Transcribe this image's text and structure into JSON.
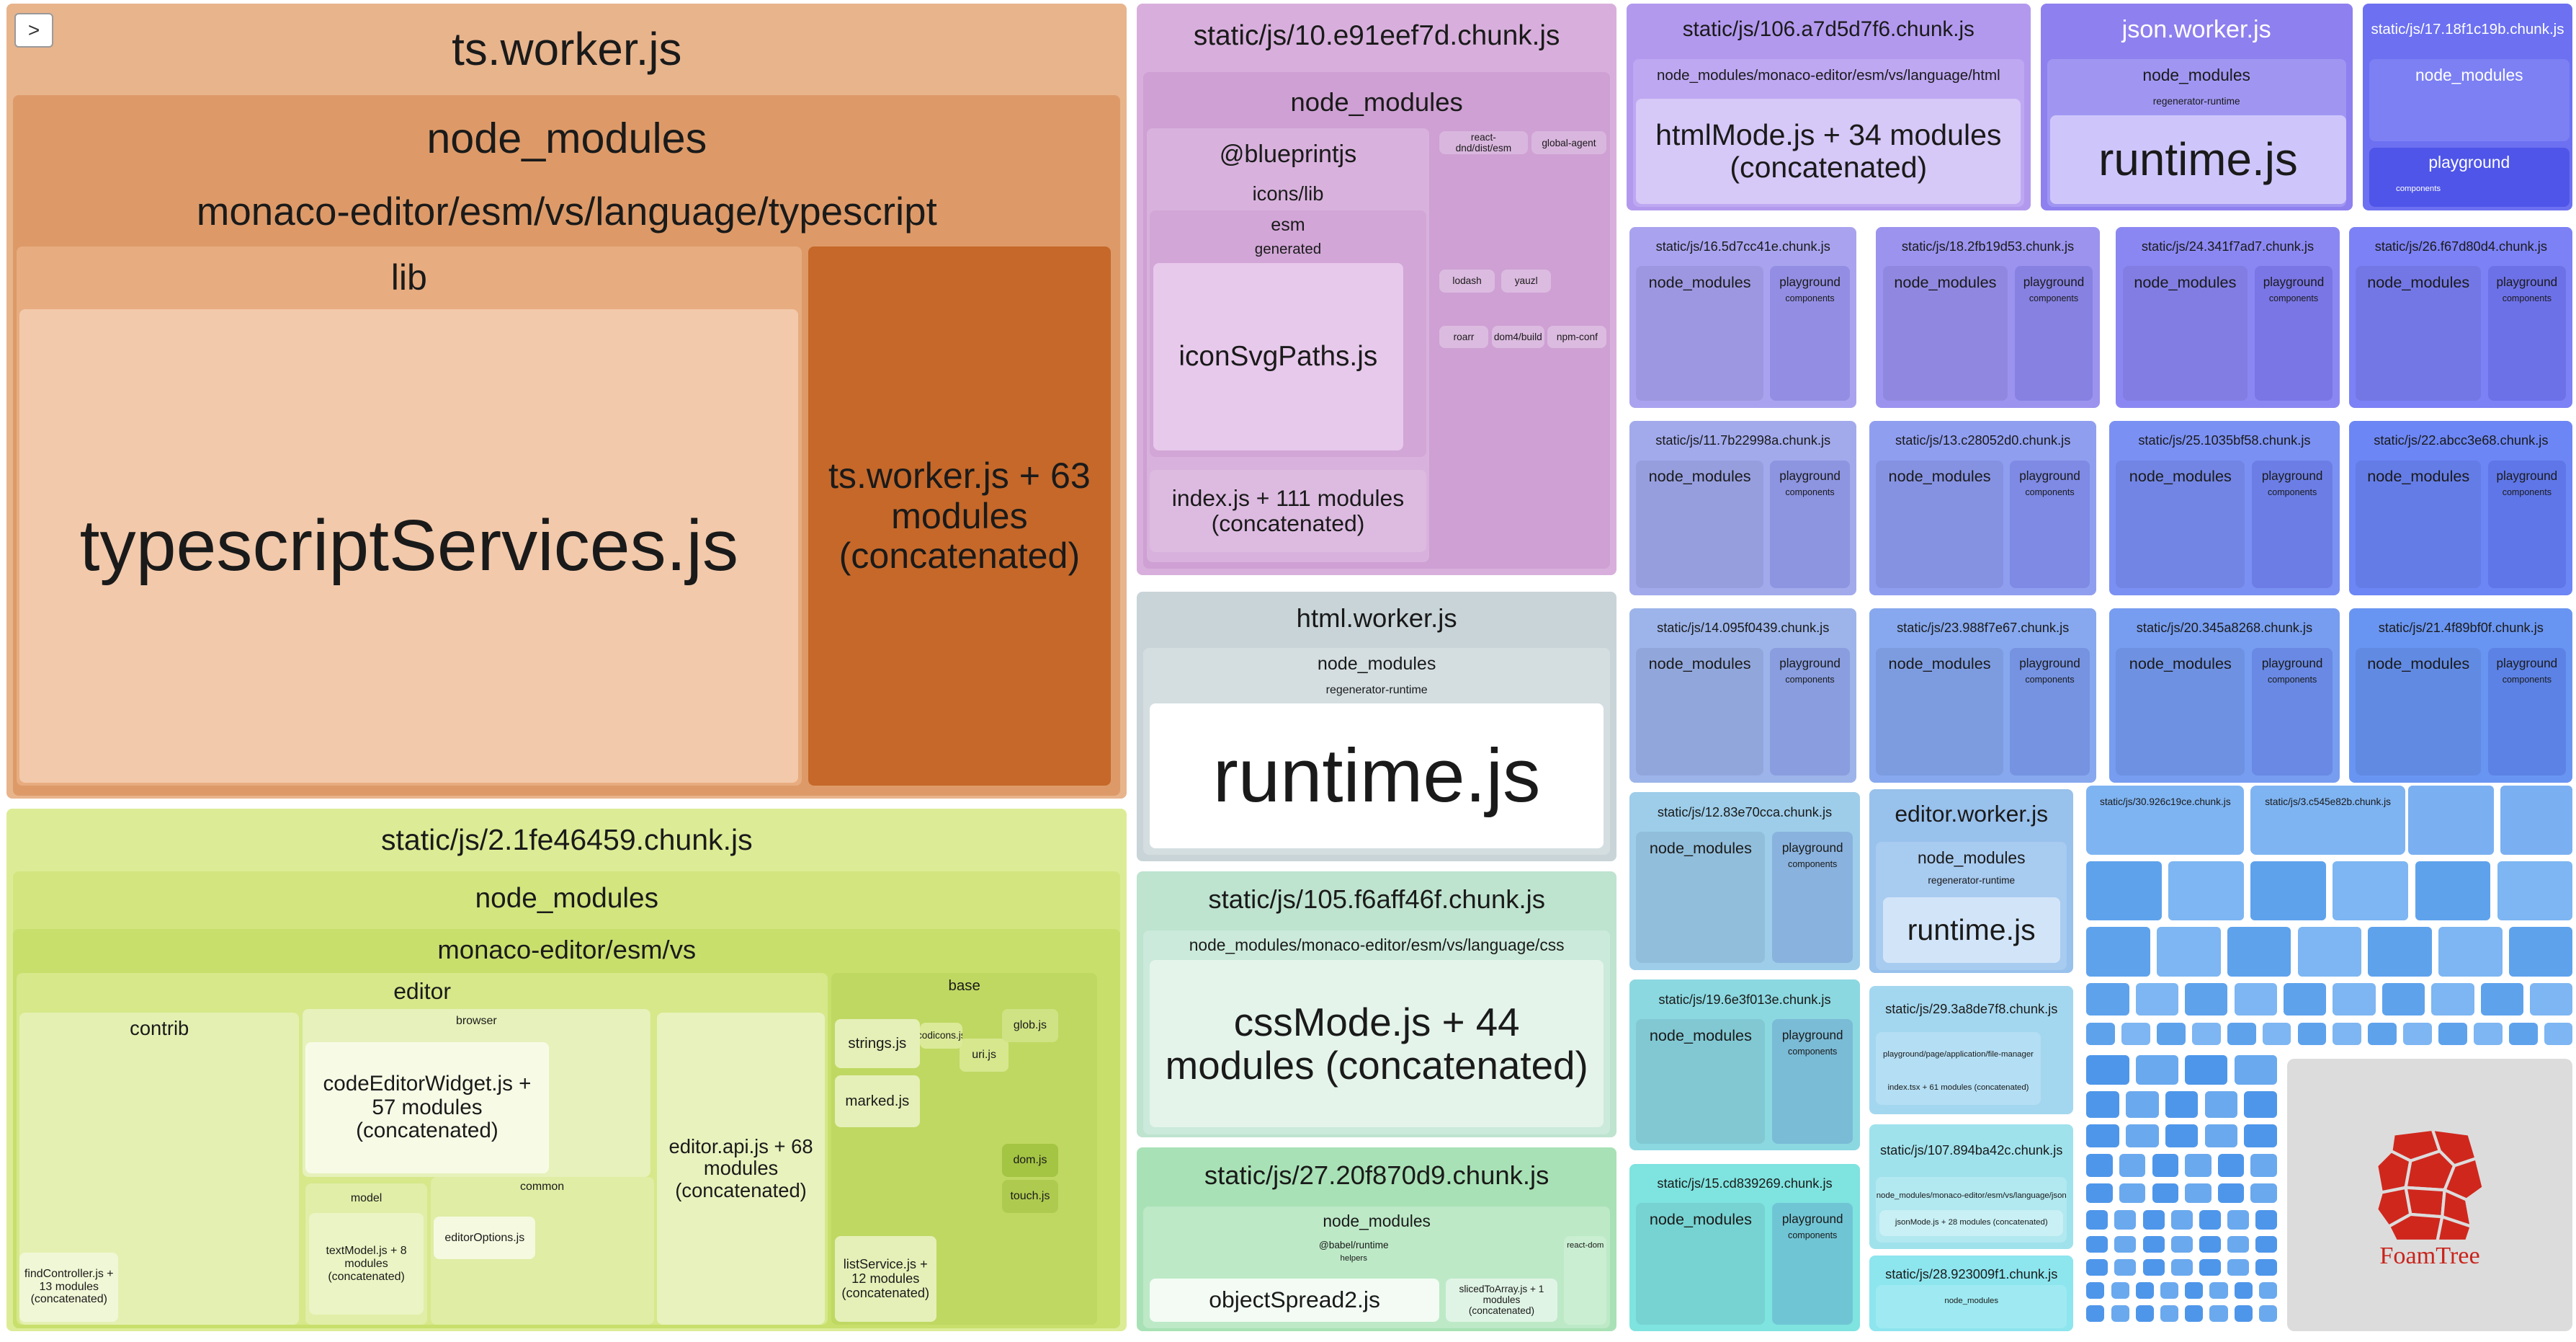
{
  "toggle": ">",
  "logo": "FoamTree",
  "tree": [
    {
      "label": "ts.worker.js",
      "children": [
        {
          "label": "node_modules",
          "children": [
            {
              "label": "monaco-editor/esm/vs/language/typescript",
              "children": [
                {
                  "label": "lib",
                  "children": [
                    {
                      "label": "typescriptServices.js"
                    }
                  ]
                },
                {
                  "label": "ts.worker.js + 63 modules (concatenated)"
                }
              ]
            }
          ]
        }
      ]
    },
    {
      "label": "static/js/2.1fe46459.chunk.js",
      "children": [
        {
          "label": "node_modules",
          "children": [
            {
              "label": "monaco-editor/esm/vs",
              "children": [
                {
                  "label": "editor",
                  "children": [
                    {
                      "label": "contrib",
                      "children": [
                        {
                          "label": "findController.js + 13 modules (concatenated)"
                        }
                      ]
                    },
                    {
                      "label": "browser",
                      "children": [
                        {
                          "label": "codeEditorWidget.js + 57 modules (concatenated)"
                        }
                      ]
                    },
                    {
                      "label": "editor.api.js + 68 modules (concatenated)"
                    },
                    {
                      "label": "model",
                      "children": [
                        {
                          "label": "textModel.js + 8 modules (concatenated)"
                        }
                      ]
                    },
                    {
                      "label": "common",
                      "children": [
                        {
                          "label": "editorOptions.js"
                        }
                      ]
                    }
                  ]
                },
                {
                  "label": "base",
                  "children": [
                    {
                      "label": "strings.js"
                    },
                    {
                      "label": "marked.js"
                    },
                    {
                      "label": "listService.js + 12 modules (concatenated)"
                    },
                    {
                      "label": "dom.js"
                    },
                    {
                      "label": "touch.js"
                    },
                    {
                      "label": "uri.js"
                    },
                    {
                      "label": "codicons.js"
                    },
                    {
                      "label": "glob.js"
                    }
                  ]
                }
              ]
            }
          ]
        }
      ]
    },
    {
      "label": "static/js/10.e91eef7d.chunk.js",
      "children": [
        {
          "label": "node_modules",
          "children": [
            {
              "label": "@blueprintjs",
              "children": [
                {
                  "label": "icons/lib",
                  "children": [
                    {
                      "label": "esm",
                      "children": [
                        {
                          "label": "generated",
                          "children": [
                            {
                              "label": "iconSvgPaths.js"
                            }
                          ]
                        }
                      ]
                    },
                    {
                      "label": "index.js + 111 modules (concatenated)"
                    }
                  ]
                }
              ]
            },
            {
              "label": "react-dnd/dist/esm"
            },
            {
              "label": "global-agent"
            },
            {
              "label": "lodash"
            },
            {
              "label": "yauzl"
            },
            {
              "label": "roarr"
            },
            {
              "label": "dom4/build"
            },
            {
              "label": "npm-conf"
            }
          ]
        }
      ]
    },
    {
      "label": "html.worker.js",
      "children": [
        {
          "label": "node_modules",
          "children": [
            {
              "label": "regenerator-runtime",
              "children": [
                {
                  "label": "runtime.js"
                }
              ]
            }
          ]
        }
      ]
    },
    {
      "label": "static/js/105.f6aff46f.chunk.js",
      "children": [
        {
          "label": "node_modules/monaco-editor/esm/vs/language/css",
          "children": [
            {
              "label": "cssMode.js + 44 modules (concatenated)"
            }
          ]
        }
      ]
    },
    {
      "label": "static/js/27.20f870d9.chunk.js",
      "children": [
        {
          "label": "node_modules",
          "children": [
            {
              "label": "@babel/runtime",
              "children": [
                {
                  "label": "helpers",
                  "children": [
                    {
                      "label": "objectSpread2.js"
                    },
                    {
                      "label": "slicedToArray.js + 1 modules (concatenated)"
                    }
                  ]
                }
              ]
            },
            {
              "label": "react-dom"
            }
          ]
        }
      ]
    },
    {
      "label": "static/js/106.a7d5d7f6.chunk.js",
      "children": [
        {
          "label": "node_modules/monaco-editor/esm/vs/language/html",
          "children": [
            {
              "label": "htmlMode.js + 34 modules (concatenated)"
            }
          ]
        }
      ]
    },
    {
      "label": "json.worker.js",
      "children": [
        {
          "label": "node_modules",
          "children": [
            {
              "label": "regenerator-runtime",
              "children": [
                {
                  "label": "runtime.js"
                }
              ]
            }
          ]
        }
      ]
    },
    {
      "label": "static/js/17.18f1c19b.chunk.js",
      "children": [
        {
          "label": "node_modules"
        },
        {
          "label": "playground",
          "children": [
            {
              "label": "components"
            }
          ]
        }
      ]
    },
    {
      "label": "static/js/16.5d7cc41e.chunk.js",
      "children": [
        {
          "label": "node_modules"
        },
        {
          "label": "playground",
          "children": [
            {
              "label": "components"
            }
          ]
        }
      ]
    },
    {
      "label": "static/js/18.2fb19d53.chunk.js",
      "children": [
        {
          "label": "node_modules"
        },
        {
          "label": "playground",
          "children": [
            {
              "label": "components"
            }
          ]
        }
      ]
    },
    {
      "label": "static/js/24.341f7ad7.chunk.js",
      "children": [
        {
          "label": "node_modules"
        },
        {
          "label": "playground",
          "children": [
            {
              "label": "components"
            }
          ]
        }
      ]
    },
    {
      "label": "static/js/26.f67d80d4.chunk.js",
      "children": [
        {
          "label": "node_modules"
        },
        {
          "label": "playground",
          "children": [
            {
              "label": "components"
            }
          ]
        }
      ]
    },
    {
      "label": "static/js/11.7b22998a.chunk.js",
      "children": [
        {
          "label": "node_modules"
        },
        {
          "label": "playground",
          "children": [
            {
              "label": "components"
            }
          ]
        }
      ]
    },
    {
      "label": "static/js/13.c28052d0.chunk.js",
      "children": [
        {
          "label": "node_modules"
        },
        {
          "label": "playground",
          "children": [
            {
              "label": "components"
            }
          ]
        }
      ]
    },
    {
      "label": "static/js/25.1035bf58.chunk.js",
      "children": [
        {
          "label": "node_modules"
        },
        {
          "label": "playground",
          "children": [
            {
              "label": "components"
            }
          ]
        }
      ]
    },
    {
      "label": "static/js/22.abcc3e68.chunk.js",
      "children": [
        {
          "label": "node_modules"
        },
        {
          "label": "playground",
          "children": [
            {
              "label": "components"
            }
          ]
        }
      ]
    },
    {
      "label": "static/js/14.095f0439.chunk.js",
      "children": [
        {
          "label": "node_modules"
        },
        {
          "label": "playground",
          "children": [
            {
              "label": "components"
            }
          ]
        }
      ]
    },
    {
      "label": "static/js/23.988f7e67.chunk.js",
      "children": [
        {
          "label": "node_modules"
        },
        {
          "label": "playground",
          "children": [
            {
              "label": "components"
            }
          ]
        }
      ]
    },
    {
      "label": "static/js/20.345a8268.chunk.js",
      "children": [
        {
          "label": "node_modules"
        },
        {
          "label": "playground",
          "children": [
            {
              "label": "components"
            }
          ]
        }
      ]
    },
    {
      "label": "static/js/21.4f89bf0f.chunk.js",
      "children": [
        {
          "label": "node_modules"
        },
        {
          "label": "playground",
          "children": [
            {
              "label": "components"
            }
          ]
        }
      ]
    },
    {
      "label": "static/js/12.83e70cca.chunk.js",
      "children": [
        {
          "label": "node_modules"
        },
        {
          "label": "playground",
          "children": [
            {
              "label": "components"
            }
          ]
        }
      ]
    },
    {
      "label": "static/js/19.6e3f013e.chunk.js",
      "children": [
        {
          "label": "node_modules"
        },
        {
          "label": "playground",
          "children": [
            {
              "label": "components"
            }
          ]
        }
      ]
    },
    {
      "label": "static/js/15.cd839269.chunk.js",
      "children": [
        {
          "label": "node_modules"
        },
        {
          "label": "playground",
          "children": [
            {
              "label": "components"
            }
          ]
        }
      ]
    },
    {
      "label": "editor.worker.js",
      "children": [
        {
          "label": "node_modules",
          "children": [
            {
              "label": "regenerator-runtime",
              "children": [
                {
                  "label": "runtime.js"
                }
              ]
            }
          ]
        }
      ]
    },
    {
      "label": "static/js/29.3a8de7f8.chunk.js",
      "children": [
        {
          "label": "playground/page/application/file-manager"
        },
        {
          "label": "index.tsx + 61 modules (concatenated)"
        }
      ]
    },
    {
      "label": "static/js/107.894ba42c.chunk.js",
      "children": [
        {
          "label": "node_modules/monaco-editor/esm/vs/language/json",
          "children": [
            {
              "label": "jsonMode.js + 28 modules (concatenated)"
            }
          ]
        }
      ]
    },
    {
      "label": "static/js/28.923009f1.chunk.js",
      "children": [
        {
          "label": "node_modules"
        }
      ]
    },
    {
      "label": "static/js/30.926c19ce.chunk.js"
    },
    {
      "label": "static/js/3.c545e82b.chunk.js"
    }
  ]
}
